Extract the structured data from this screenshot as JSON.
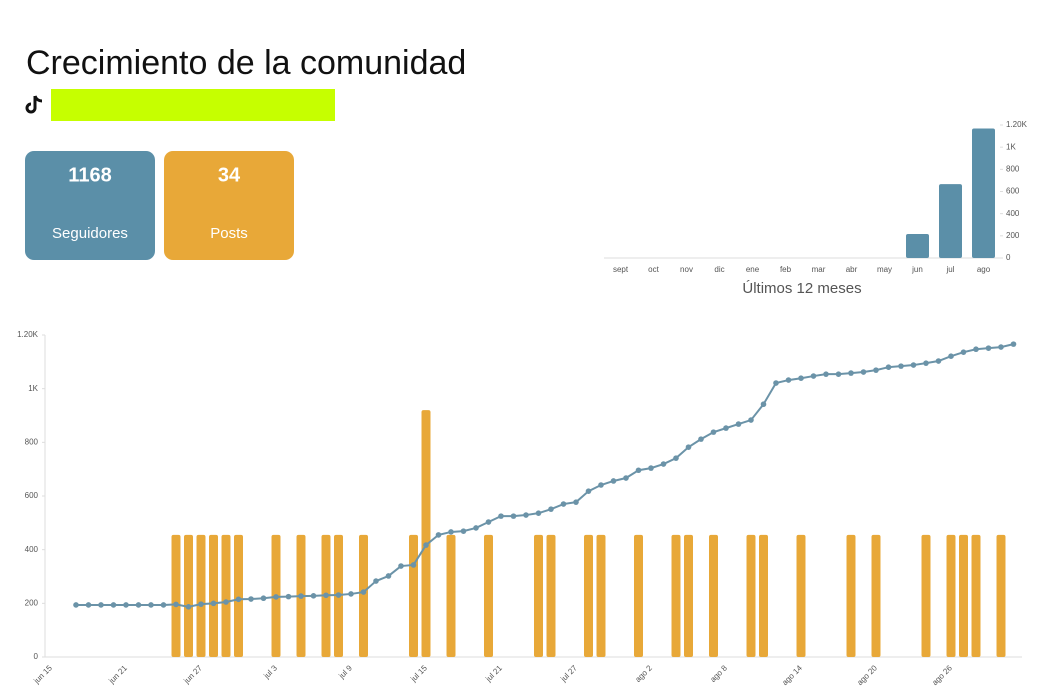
{
  "header": {
    "title": "Crecimiento de la comunidad"
  },
  "cards": [
    {
      "value": 1168,
      "label": "Seguidores",
      "color": "#5b8fa8"
    },
    {
      "value": 34,
      "label": "Posts",
      "color": "#e8a838"
    }
  ],
  "chart_data": [
    {
      "type": "bar",
      "x_label": "Últimos 12 meses",
      "categories": [
        "sept",
        "oct",
        "nov",
        "dic",
        "ene",
        "feb",
        "mar",
        "abr",
        "may",
        "jun",
        "jul",
        "ago"
      ],
      "values": [
        0,
        0,
        0,
        0,
        0,
        0,
        0,
        0,
        0,
        216,
        667,
        1168
      ],
      "color": "#5b8fa8",
      "y_axis_side": "right",
      "ylim": [
        0,
        1200
      ],
      "yticks": [
        0,
        200,
        400,
        600,
        800,
        {
          "value": 1000,
          "label": "1K"
        },
        {
          "value": 1200,
          "label": "1.20K"
        }
      ]
    },
    {
      "type": "combo",
      "categories": [
        "jun 15",
        null,
        null,
        null,
        null,
        null,
        "jun 21",
        null,
        null,
        null,
        null,
        null,
        "jun 27",
        null,
        null,
        null,
        null,
        null,
        "jul 3",
        null,
        null,
        null,
        null,
        null,
        "jul 9",
        null,
        null,
        null,
        null,
        null,
        "jul 15",
        null,
        null,
        null,
        null,
        null,
        "jul 21",
        null,
        null,
        null,
        null,
        null,
        "jul 27",
        null,
        null,
        null,
        null,
        null,
        "ago 2",
        null,
        null,
        null,
        null,
        null,
        "ago 8",
        null,
        null,
        null,
        null,
        null,
        "ago 14",
        null,
        null,
        null,
        null,
        null,
        "ago 20",
        null,
        null,
        null,
        null,
        null,
        "ago 26",
        null,
        null,
        null,
        null,
        null
      ],
      "series": [
        {
          "type": "bar",
          "color": "#e8a838",
          "values": [
            null,
            null,
            null,
            null,
            null,
            null,
            null,
            null,
            null,
            null,
            455,
            455,
            455,
            455,
            455,
            455,
            null,
            null,
            455,
            null,
            455,
            null,
            455,
            455,
            null,
            455,
            null,
            null,
            null,
            455,
            920,
            null,
            455,
            null,
            null,
            455,
            null,
            null,
            null,
            455,
            455,
            null,
            null,
            455,
            455,
            null,
            null,
            455,
            null,
            null,
            455,
            455,
            null,
            455,
            null,
            null,
            455,
            455,
            null,
            null,
            455,
            null,
            null,
            null,
            455,
            null,
            455,
            null,
            null,
            null,
            455,
            null,
            455,
            455,
            455,
            null,
            455,
            null
          ]
        },
        {
          "type": "line",
          "color": "#6b93a8",
          "values": [
            null,
            null,
            194,
            194,
            194,
            194,
            194,
            194,
            194,
            194,
            196,
            187,
            197,
            200,
            205,
            215,
            216,
            219,
            224,
            225,
            227,
            228,
            230,
            231,
            235,
            242,
            283,
            302,
            339,
            343,
            417,
            455,
            466,
            469,
            481,
            503,
            525,
            525,
            529,
            536,
            551,
            570,
            577,
            618,
            641,
            656,
            667,
            696,
            704,
            719,
            741,
            782,
            812,
            838,
            853,
            868,
            883,
            942,
            1021,
            1032,
            1039,
            1047,
            1054,
            1054,
            1058,
            1062,
            1069,
            1080,
            1084,
            1088,
            1095,
            1103,
            1121,
            1136,
            1147,
            1151,
            1155,
            1166
          ]
        }
      ],
      "ylim": [
        0,
        1200
      ],
      "yticks": [
        0,
        200,
        400,
        600,
        800,
        {
          "value": 1000,
          "label": "1K"
        },
        {
          "value": 1200,
          "label": "1.20K"
        }
      ]
    }
  ]
}
